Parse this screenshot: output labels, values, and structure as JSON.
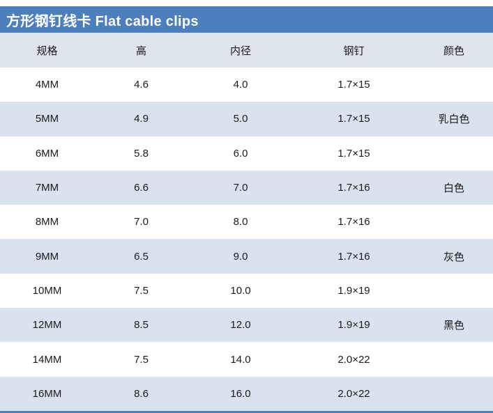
{
  "title_bar": {
    "title": "方形钢钉线卡 Flat cable clips",
    "bg_color": "#4d7fbc",
    "text_color": "#ffffff"
  },
  "table": {
    "columns": [
      "规格",
      "高",
      "内径",
      "钢钉",
      "颜色"
    ],
    "rows": [
      [
        "4MM",
        "4.6",
        "4.0",
        "1.7×15",
        ""
      ],
      [
        "5MM",
        "4.9",
        "5.0",
        "1.7×15",
        "乳白色"
      ],
      [
        "6MM",
        "5.8",
        "6.0",
        "1.7×15",
        ""
      ],
      [
        "7MM",
        "6.6",
        "7.0",
        "1.7×16",
        "白色"
      ],
      [
        "8MM",
        "7.0",
        "8.0",
        "1.7×16",
        ""
      ],
      [
        "9MM",
        "6.5",
        "9.0",
        "1.7×16",
        "灰色"
      ],
      [
        "10MM",
        "7.5",
        "10.0",
        "1.9×19",
        ""
      ],
      [
        "12MM",
        "8.5",
        "12.0",
        "1.9×19",
        "黑色"
      ],
      [
        "14MM",
        "7.5",
        "14.0",
        "2.0×22",
        ""
      ],
      [
        "16MM",
        "8.6",
        "16.0",
        "2.0×22",
        ""
      ]
    ],
    "colors": {
      "header_bg": "#dde4ed",
      "alt_row_bg": "#d9e2ef",
      "title_blue": "#4d7fbc",
      "bottom_border": "#4d7fbc"
    }
  }
}
